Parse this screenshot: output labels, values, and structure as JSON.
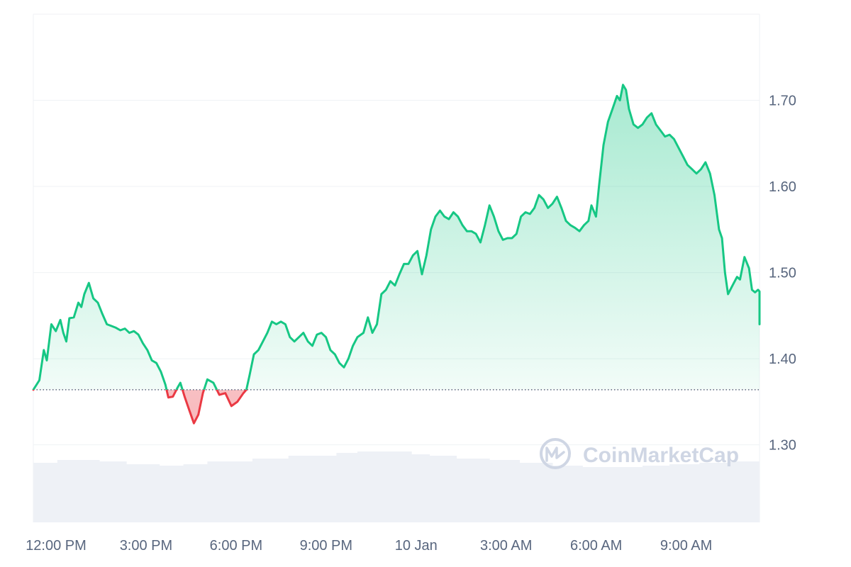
{
  "chart_data": {
    "type": "area",
    "title": "",
    "xlabel": "",
    "ylabel": "",
    "ylim": [
      1.21,
      1.8
    ],
    "y_ticks": [
      1.3,
      1.4,
      1.5,
      1.6,
      1.7
    ],
    "y_tick_labels": [
      "1.30",
      "1.40",
      "1.50",
      "1.60",
      "1.70"
    ],
    "x_tick_labels": [
      "12:00 PM",
      "3:00 PM",
      "6:00 PM",
      "9:00 PM",
      "10 Jan",
      "3:00 AM",
      "6:00 AM",
      "9:00 AM"
    ],
    "x_hours_range": [
      0,
      24.2
    ],
    "x_tick_hours": [
      0,
      3,
      6,
      9,
      12,
      15,
      18,
      21
    ],
    "baseline": 1.364,
    "grid": true,
    "colors": {
      "up_line": "#16c784",
      "down_line": "#ea3943",
      "up_fill": "#16c784",
      "down_fill": "#ea3943",
      "grid": "#eff2f5",
      "volume": "#eef1f6",
      "axis_text": "#58667e"
    },
    "series": [
      {
        "name": "",
        "points": [
          [
            0,
            1.364
          ],
          [
            0.2,
            1.375
          ],
          [
            0.35,
            1.41
          ],
          [
            0.45,
            1.398
          ],
          [
            0.6,
            1.44
          ],
          [
            0.75,
            1.432
          ],
          [
            0.9,
            1.445
          ],
          [
            1.0,
            1.43
          ],
          [
            1.1,
            1.42
          ],
          [
            1.2,
            1.447
          ],
          [
            1.35,
            1.448
          ],
          [
            1.5,
            1.465
          ],
          [
            1.6,
            1.46
          ],
          [
            1.7,
            1.475
          ],
          [
            1.85,
            1.488
          ],
          [
            2.0,
            1.47
          ],
          [
            2.15,
            1.465
          ],
          [
            2.3,
            1.452
          ],
          [
            2.45,
            1.44
          ],
          [
            2.6,
            1.438
          ],
          [
            2.75,
            1.436
          ],
          [
            2.9,
            1.433
          ],
          [
            3.05,
            1.435
          ],
          [
            3.2,
            1.43
          ],
          [
            3.35,
            1.432
          ],
          [
            3.5,
            1.428
          ],
          [
            3.65,
            1.418
          ],
          [
            3.8,
            1.41
          ],
          [
            3.95,
            1.398
          ],
          [
            4.1,
            1.395
          ],
          [
            4.25,
            1.385
          ],
          [
            4.4,
            1.37
          ],
          [
            4.5,
            1.355
          ],
          [
            4.65,
            1.356
          ],
          [
            4.8,
            1.366
          ],
          [
            4.9,
            1.372
          ],
          [
            5.05,
            1.355
          ],
          [
            5.2,
            1.34
          ],
          [
            5.35,
            1.325
          ],
          [
            5.5,
            1.335
          ],
          [
            5.65,
            1.36
          ],
          [
            5.8,
            1.376
          ],
          [
            6.0,
            1.372
          ],
          [
            6.2,
            1.358
          ],
          [
            6.4,
            1.36
          ],
          [
            6.6,
            1.345
          ],
          [
            6.8,
            1.35
          ],
          [
            7.0,
            1.36
          ],
          [
            7.1,
            1.364
          ],
          [
            7.2,
            1.38
          ],
          [
            7.35,
            1.405
          ],
          [
            7.5,
            1.41
          ],
          [
            7.65,
            1.42
          ],
          [
            7.8,
            1.43
          ],
          [
            7.95,
            1.443
          ],
          [
            8.1,
            1.44
          ],
          [
            8.25,
            1.443
          ],
          [
            8.4,
            1.44
          ],
          [
            8.55,
            1.425
          ],
          [
            8.7,
            1.42
          ],
          [
            8.85,
            1.425
          ],
          [
            9.0,
            1.43
          ],
          [
            9.15,
            1.42
          ],
          [
            9.3,
            1.415
          ],
          [
            9.45,
            1.428
          ],
          [
            9.6,
            1.43
          ],
          [
            9.75,
            1.425
          ],
          [
            9.9,
            1.41
          ],
          [
            10.05,
            1.405
          ],
          [
            10.2,
            1.395
          ],
          [
            10.35,
            1.39
          ],
          [
            10.5,
            1.4
          ],
          [
            10.65,
            1.415
          ],
          [
            10.8,
            1.425
          ],
          [
            11.0,
            1.43
          ],
          [
            11.15,
            1.448
          ],
          [
            11.3,
            1.43
          ],
          [
            11.45,
            1.44
          ],
          [
            11.6,
            1.475
          ],
          [
            11.75,
            1.48
          ],
          [
            11.9,
            1.49
          ],
          [
            12.05,
            1.485
          ],
          [
            12.2,
            1.498
          ],
          [
            12.35,
            1.51
          ],
          [
            12.5,
            1.51
          ],
          [
            12.65,
            1.52
          ],
          [
            12.8,
            1.525
          ],
          [
            12.95,
            1.498
          ],
          [
            13.1,
            1.52
          ],
          [
            13.25,
            1.55
          ],
          [
            13.4,
            1.565
          ],
          [
            13.55,
            1.572
          ],
          [
            13.7,
            1.565
          ],
          [
            13.85,
            1.562
          ],
          [
            14.0,
            1.57
          ],
          [
            14.15,
            1.565
          ],
          [
            14.3,
            1.555
          ],
          [
            14.45,
            1.548
          ],
          [
            14.6,
            1.548
          ],
          [
            14.75,
            1.545
          ],
          [
            14.9,
            1.535
          ],
          [
            15.05,
            1.555
          ],
          [
            15.2,
            1.578
          ],
          [
            15.35,
            1.565
          ],
          [
            15.5,
            1.548
          ],
          [
            15.65,
            1.538
          ],
          [
            15.8,
            1.54
          ],
          [
            15.95,
            1.54
          ],
          [
            16.1,
            1.545
          ],
          [
            16.25,
            1.565
          ],
          [
            16.4,
            1.57
          ],
          [
            16.55,
            1.568
          ],
          [
            16.7,
            1.575
          ],
          [
            16.85,
            1.59
          ],
          [
            17.0,
            1.585
          ],
          [
            17.15,
            1.575
          ],
          [
            17.3,
            1.58
          ],
          [
            17.45,
            1.588
          ],
          [
            17.6,
            1.575
          ],
          [
            17.75,
            1.56
          ],
          [
            17.9,
            1.555
          ],
          [
            18.05,
            1.552
          ],
          [
            18.2,
            1.548
          ],
          [
            18.35,
            1.555
          ],
          [
            18.5,
            1.56
          ],
          [
            18.6,
            1.578
          ],
          [
            18.75,
            1.565
          ],
          [
            18.85,
            1.6
          ],
          [
            19.0,
            1.648
          ],
          [
            19.15,
            1.675
          ],
          [
            19.3,
            1.69
          ],
          [
            19.45,
            1.705
          ],
          [
            19.55,
            1.7
          ],
          [
            19.65,
            1.718
          ],
          [
            19.75,
            1.712
          ],
          [
            19.85,
            1.69
          ],
          [
            20.0,
            1.672
          ],
          [
            20.15,
            1.668
          ],
          [
            20.3,
            1.672
          ],
          [
            20.45,
            1.68
          ],
          [
            20.6,
            1.685
          ],
          [
            20.75,
            1.672
          ],
          [
            20.9,
            1.665
          ],
          [
            21.05,
            1.658
          ],
          [
            21.2,
            1.66
          ],
          [
            21.35,
            1.655
          ],
          [
            21.5,
            1.645
          ],
          [
            21.65,
            1.635
          ],
          [
            21.8,
            1.625
          ],
          [
            21.95,
            1.62
          ],
          [
            22.1,
            1.615
          ],
          [
            22.25,
            1.62
          ],
          [
            22.4,
            1.628
          ],
          [
            22.55,
            1.615
          ],
          [
            22.7,
            1.59
          ],
          [
            22.85,
            1.55
          ],
          [
            22.95,
            1.54
          ],
          [
            23.05,
            1.5
          ],
          [
            23.15,
            1.475
          ],
          [
            23.3,
            1.485
          ],
          [
            23.45,
            1.495
          ],
          [
            23.55,
            1.492
          ],
          [
            23.7,
            1.518
          ],
          [
            23.85,
            1.505
          ],
          [
            23.95,
            1.48
          ],
          [
            24.05,
            1.477
          ],
          [
            24.15,
            1.48
          ],
          [
            24.25,
            1.478
          ],
          [
            24.4,
            1.47
          ],
          [
            24.55,
            1.445
          ],
          [
            24.65,
            1.44
          ],
          [
            24.75,
            1.44
          ]
        ]
      }
    ],
    "volume": {
      "bucket_hours": [
        0,
        0.8,
        2.2,
        3.1,
        4.2,
        5.0,
        5.8,
        7.3,
        8.5,
        10.1,
        10.8,
        12.6,
        13.2,
        14.1,
        15.2,
        16.2,
        17.3,
        18.3,
        19.3,
        20.3,
        21.2,
        22.2,
        23.2,
        24.2
      ],
      "values": [
        42,
        44,
        43,
        41,
        40,
        41,
        43,
        45,
        47,
        49,
        50,
        48,
        47,
        45,
        44,
        42,
        40,
        39,
        39,
        40,
        41,
        42,
        43,
        44
      ]
    },
    "watermark": "CoinMarketCap"
  }
}
